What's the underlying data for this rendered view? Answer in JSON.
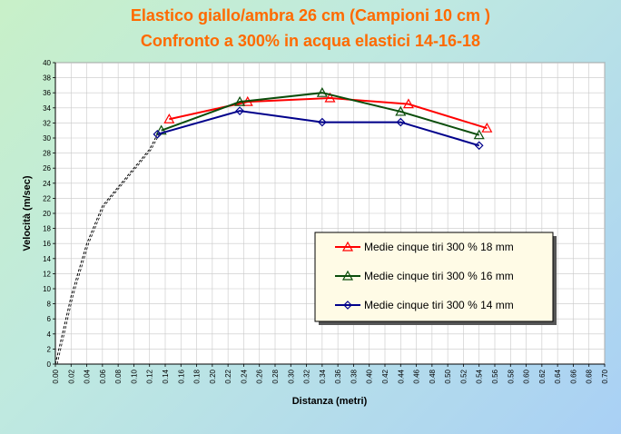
{
  "chart_data": {
    "type": "line",
    "title": "Elastico giallo/ambra  26 cm (Campioni 10 cm )",
    "subtitle": "Confronto a 300% in acqua elastici 14-16-18",
    "xlabel": "Distanza (metri)",
    "ylabel": "Velocità (m/sec)",
    "xlim": [
      0,
      0.7
    ],
    "ylim": [
      0,
      40
    ],
    "x_tick_step": 0.02,
    "y_tick_step": 2,
    "grid": "vertical-and-horizontal",
    "legend_position": "center-right",
    "start_curve": {
      "x": [
        0,
        0.02,
        0.04,
        0.06,
        0.08,
        0.1,
        0.12,
        0.13
      ],
      "y": [
        0,
        9,
        16,
        21,
        23.5,
        26,
        28.5,
        30.5
      ]
    },
    "series": [
      {
        "name": "Medie cinque tiri 300 %  18 mm",
        "color": "#ff0000",
        "marker": "triangle",
        "x": [
          0.145,
          0.245,
          0.35,
          0.45,
          0.55
        ],
        "y": [
          32.5,
          34.8,
          35.3,
          34.5,
          31.3
        ]
      },
      {
        "name": "Medie cinque tiri 300 %  16 mm",
        "color": "#0b4d0b",
        "marker": "triangle",
        "x": [
          0.135,
          0.235,
          0.34,
          0.44,
          0.54
        ],
        "y": [
          31.0,
          34.8,
          36.0,
          33.5,
          30.4
        ]
      },
      {
        "name": "Medie cinque tiri 300 %  14 mm",
        "color": "#00008b",
        "marker": "diamond",
        "x": [
          0.13,
          0.235,
          0.34,
          0.44,
          0.54
        ],
        "y": [
          30.5,
          33.6,
          32.1,
          32.1,
          29.0
        ]
      }
    ]
  }
}
